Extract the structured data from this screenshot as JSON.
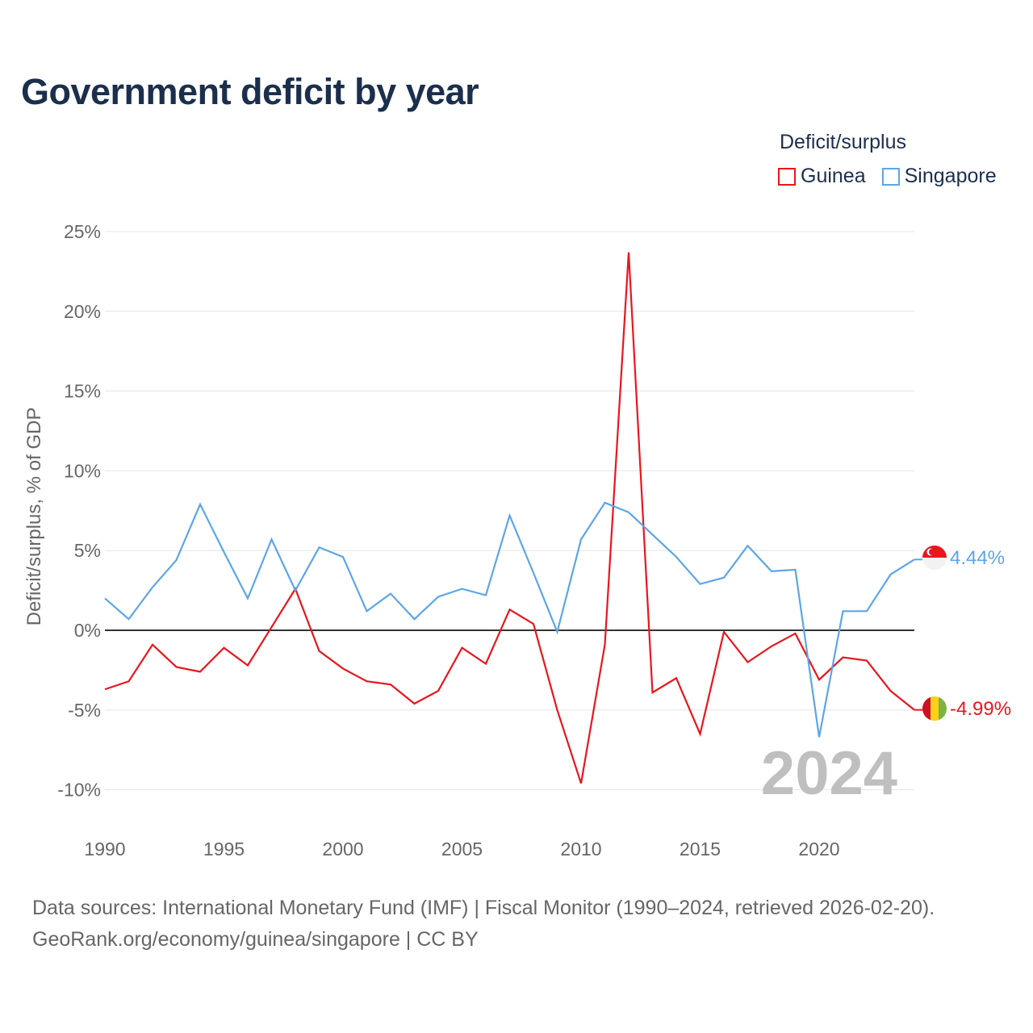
{
  "chart_data": {
    "type": "line",
    "title": "Government deficit by year",
    "legend_title": "Deficit/surplus",
    "ylabel": "Deficit/surplus, % of GDP",
    "xlabel": "",
    "ylim": [
      -12,
      25
    ],
    "xlim": [
      1990,
      2024
    ],
    "x_ticks": [
      1990,
      1995,
      2000,
      2005,
      2010,
      2015,
      2020
    ],
    "y_ticks": [
      {
        "value": 25,
        "label": "25%"
      },
      {
        "value": 20,
        "label": "20%"
      },
      {
        "value": 15,
        "label": "15%"
      },
      {
        "value": 10,
        "label": "10%"
      },
      {
        "value": 5,
        "label": "5%"
      },
      {
        "value": 0,
        "label": "0%"
      },
      {
        "value": -5,
        "label": "-5%"
      },
      {
        "value": -10,
        "label": "-10%"
      }
    ],
    "year_watermark": "2024",
    "x": [
      1990,
      1991,
      1992,
      1993,
      1994,
      1995,
      1996,
      1997,
      1998,
      1999,
      2000,
      2001,
      2002,
      2003,
      2004,
      2005,
      2006,
      2007,
      2008,
      2009,
      2010,
      2011,
      2012,
      2013,
      2014,
      2015,
      2016,
      2017,
      2018,
      2019,
      2020,
      2021,
      2022,
      2023,
      2024
    ],
    "series": [
      {
        "name": "Guinea",
        "color": "#e8161d",
        "end_label": "-4.99%",
        "values": [
          -3.7,
          -3.2,
          -0.9,
          -2.3,
          -2.6,
          -1.1,
          -2.2,
          0.2,
          2.6,
          -1.3,
          -2.4,
          -3.2,
          -3.4,
          -4.6,
          -3.8,
          -1.1,
          -2.1,
          1.3,
          0.4,
          -5.0,
          -9.6,
          -0.9,
          23.7,
          -3.9,
          -3.0,
          -6.5,
          -0.1,
          -2.0,
          -1.0,
          -0.2,
          -3.1,
          -1.7,
          -1.9,
          -3.8,
          -4.99
        ]
      },
      {
        "name": "Singapore",
        "color": "#5da5e8",
        "end_label": "4.44%",
        "values": [
          2.0,
          0.7,
          2.7,
          4.4,
          7.9,
          4.9,
          2.0,
          5.7,
          2.5,
          5.2,
          4.6,
          1.2,
          2.3,
          0.7,
          2.1,
          2.6,
          2.2,
          7.2,
          3.6,
          -0.1,
          5.7,
          8.0,
          7.4,
          6.0,
          4.6,
          2.9,
          3.3,
          5.3,
          3.7,
          3.8,
          -6.7,
          1.2,
          1.2,
          3.5,
          4.44
        ]
      }
    ]
  },
  "source": {
    "line1": "Data sources: International Monetary Fund (IMF) | Fiscal Monitor (1990–2024, retrieved 2026-02-20).",
    "line2": "GeoRank.org/economy/guinea/singapore | CC BY"
  }
}
